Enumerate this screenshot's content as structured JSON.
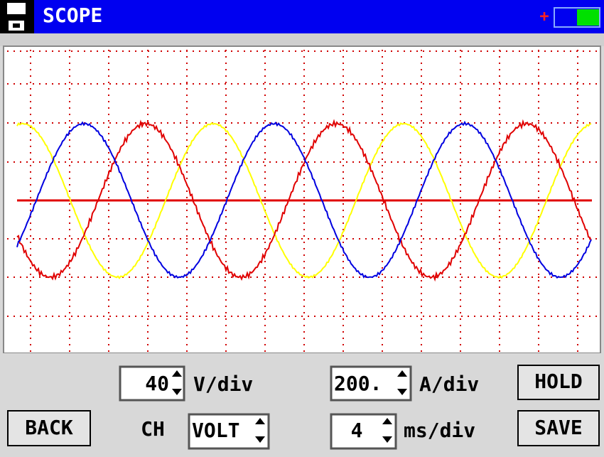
{
  "header": {
    "title": "SCOPE",
    "battery_sign": "+"
  },
  "controls": {
    "volt_scale": {
      "value": "40",
      "unit": "V/div"
    },
    "amp_scale": {
      "value": "200.",
      "unit": "A/div"
    },
    "channel": {
      "label": "CH",
      "value": "VOLT"
    },
    "time_scale": {
      "value": "4",
      "unit": "ms/div"
    },
    "buttons": {
      "hold": "HOLD",
      "back": "BACK",
      "save": "SAVE"
    }
  }
}
